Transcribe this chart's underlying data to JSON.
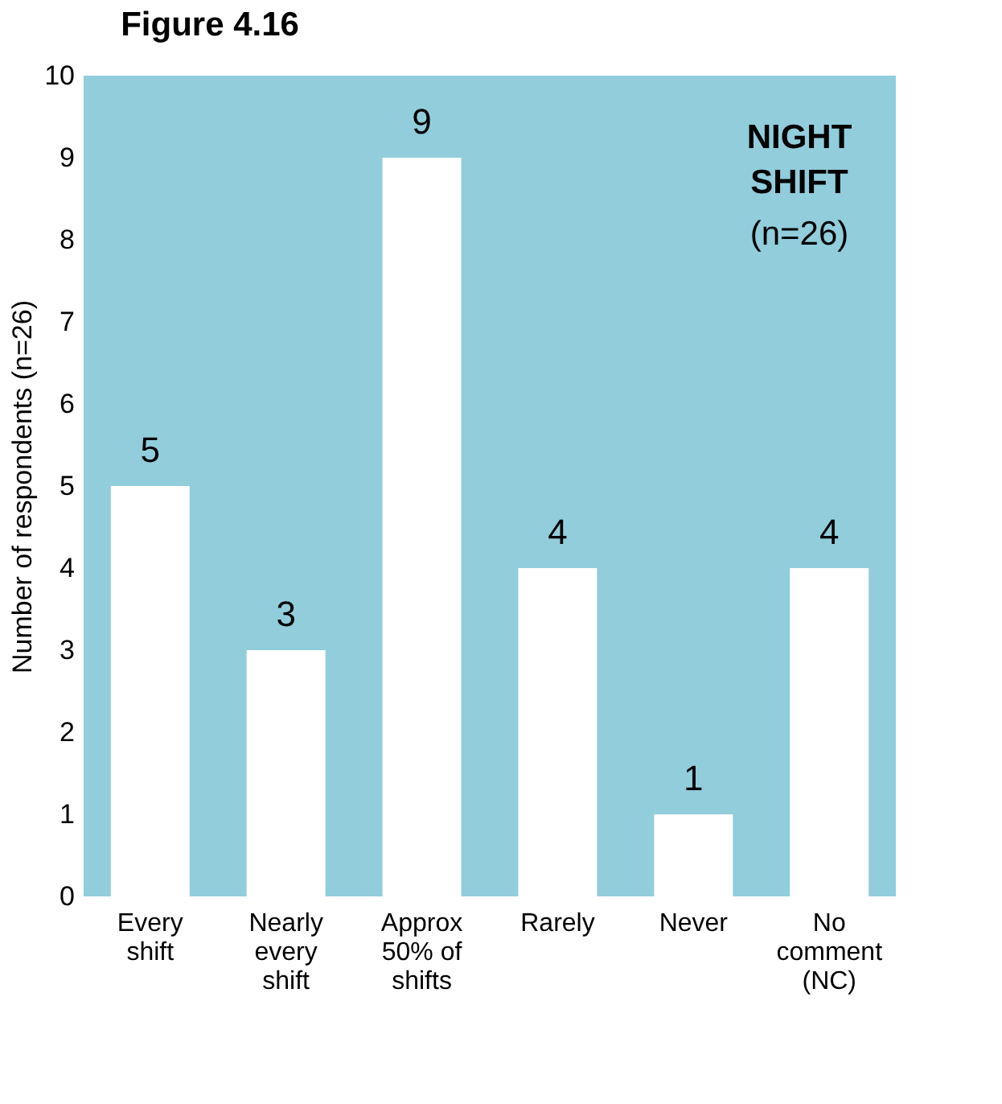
{
  "chart_data": {
    "type": "bar",
    "title": "Figure 4.16",
    "ylabel": "Number of respondents (n=26)",
    "categories": [
      "Every shift",
      "Nearly every shift",
      "Approx 50% of shifts",
      "Rarely",
      "Never",
      "No comment (NC)"
    ],
    "values": [
      5,
      3,
      9,
      4,
      1,
      4
    ],
    "color": "#ffffff",
    "ylim": [
      0,
      10
    ],
    "yticks": [
      0,
      1,
      2,
      3,
      4,
      5,
      6,
      7,
      8,
      9,
      10
    ],
    "grid": false,
    "data_labels": true,
    "annotations": [
      "NIGHT SHIFT",
      "(n=26)"
    ]
  }
}
